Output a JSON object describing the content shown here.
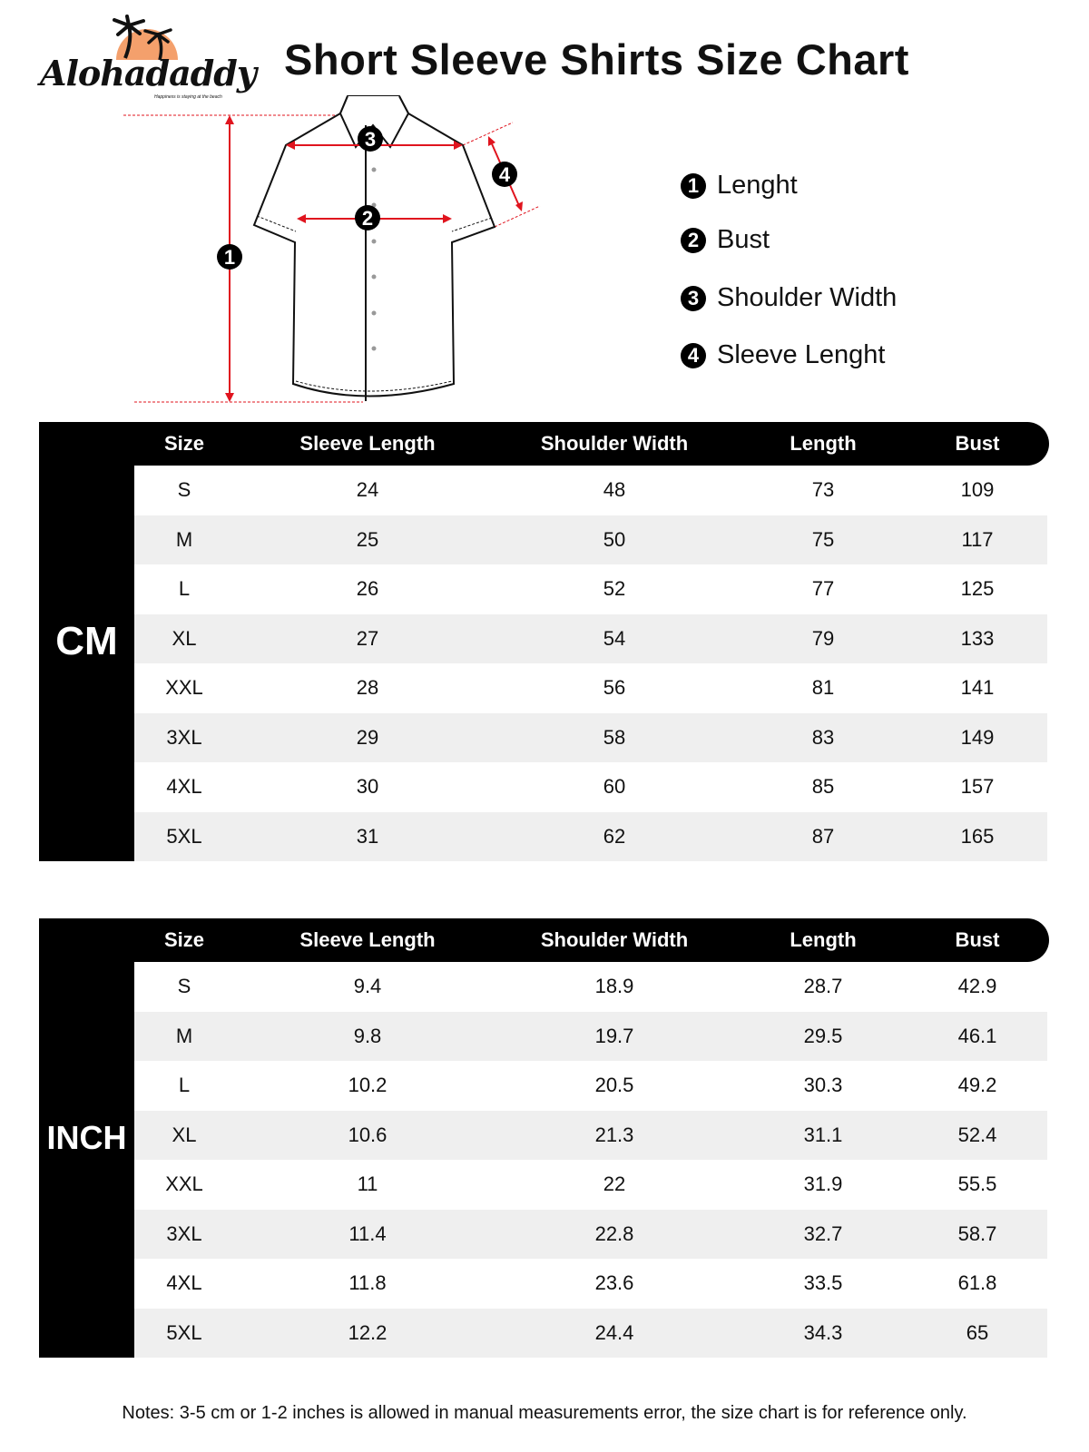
{
  "brand": {
    "name": "Alohadaddy",
    "tagline": "Happiness is staying at the beach",
    "colors": {
      "sun": "#f4a06c",
      "palm": "#111111"
    }
  },
  "title": "Short Sleeve Shirts Size Chart",
  "diagram": {
    "markers": [
      "1",
      "2",
      "3",
      "4"
    ],
    "arrow_color": "#e0141e"
  },
  "legend": [
    {
      "num": "1",
      "label": "Lenght"
    },
    {
      "num": "2",
      "label": "Bust"
    },
    {
      "num": "3",
      "label": "Shoulder Width"
    },
    {
      "num": "4",
      "label": "Sleeve Lenght"
    }
  ],
  "columns": [
    "Size",
    "Sleeve Length",
    "Shoulder Width",
    "Length",
    "Bust"
  ],
  "tables": [
    {
      "unit": "CM",
      "rows": [
        [
          "S",
          "24",
          "48",
          "73",
          "109"
        ],
        [
          "M",
          "25",
          "50",
          "75",
          "117"
        ],
        [
          "L",
          "26",
          "52",
          "77",
          "125"
        ],
        [
          "XL",
          "27",
          "54",
          "79",
          "133"
        ],
        [
          "XXL",
          "28",
          "56",
          "81",
          "141"
        ],
        [
          "3XL",
          "29",
          "58",
          "83",
          "149"
        ],
        [
          "4XL",
          "30",
          "60",
          "85",
          "157"
        ],
        [
          "5XL",
          "31",
          "62",
          "87",
          "165"
        ]
      ]
    },
    {
      "unit": "INCH",
      "rows": [
        [
          "S",
          "9.4",
          "18.9",
          "28.7",
          "42.9"
        ],
        [
          "M",
          "9.8",
          "19.7",
          "29.5",
          "46.1"
        ],
        [
          "L",
          "10.2",
          "20.5",
          "30.3",
          "49.2"
        ],
        [
          "XL",
          "10.6",
          "21.3",
          "31.1",
          "52.4"
        ],
        [
          "XXL",
          "11",
          "22",
          "31.9",
          "55.5"
        ],
        [
          "3XL",
          "11.4",
          "22.8",
          "32.7",
          "58.7"
        ],
        [
          "4XL",
          "11.8",
          "23.6",
          "33.5",
          "61.8"
        ],
        [
          "5XL",
          "12.2",
          "24.4",
          "34.3",
          "65"
        ]
      ]
    }
  ],
  "notes": "Notes: 3-5 cm or 1-2 inches is allowed in manual measurements error, the size chart is for reference only."
}
